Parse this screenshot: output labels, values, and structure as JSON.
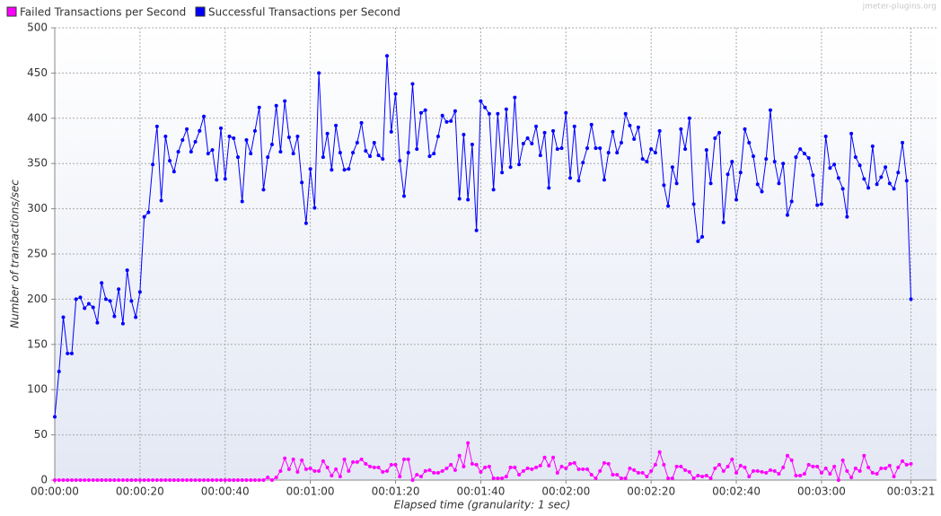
{
  "chart_data": {
    "type": "line",
    "legend_position": "top-left",
    "watermark": "jmeter-plugins.org",
    "x_label": "Elapsed time (granularity: 1 sec)",
    "y_label": "Number of transactions/sec",
    "grid": true,
    "x": [
      0,
      1,
      2,
      3,
      4,
      5,
      6,
      7,
      8,
      9,
      10,
      11,
      12,
      13,
      14,
      15,
      16,
      17,
      18,
      19,
      20,
      21,
      22,
      23,
      24,
      25,
      26,
      27,
      28,
      29,
      30,
      31,
      32,
      33,
      34,
      35,
      36,
      37,
      38,
      39,
      40,
      41,
      42,
      43,
      44,
      45,
      46,
      47,
      48,
      49,
      50,
      51,
      52,
      53,
      54,
      55,
      56,
      57,
      58,
      59,
      60,
      61,
      62,
      63,
      64,
      65,
      66,
      67,
      68,
      69,
      70,
      71,
      72,
      73,
      74,
      75,
      76,
      77,
      78,
      79,
      80,
      81,
      82,
      83,
      84,
      85,
      86,
      87,
      88,
      89,
      90,
      91,
      92,
      93,
      94,
      95,
      96,
      97,
      98,
      99,
      100,
      101,
      102,
      103,
      104,
      105,
      106,
      107,
      108,
      109,
      110,
      111,
      112,
      113,
      114,
      115,
      116,
      117,
      118,
      119,
      120,
      121,
      122,
      123,
      124,
      125,
      126,
      127,
      128,
      129,
      130,
      131,
      132,
      133,
      134,
      135,
      136,
      137,
      138,
      139,
      140,
      141,
      142,
      143,
      144,
      145,
      146,
      147,
      148,
      149,
      150,
      151,
      152,
      153,
      154,
      155,
      156,
      157,
      158,
      159,
      160,
      161,
      162,
      163,
      164,
      165,
      166,
      167,
      168,
      169,
      170,
      171,
      172,
      173,
      174,
      175,
      176,
      177,
      178,
      179,
      180,
      181,
      182,
      183,
      184,
      185,
      186,
      187,
      188,
      189,
      190,
      191,
      192,
      193,
      194,
      195,
      196,
      197,
      198,
      199,
      200,
      201
    ],
    "series": [
      {
        "name": "Failed Transactions per Second",
        "color": "#ff00ff",
        "values": [
          0,
          0,
          0,
          0,
          0,
          0,
          0,
          0,
          0,
          0,
          0,
          0,
          0,
          0,
          0,
          0,
          0,
          0,
          0,
          0,
          0,
          0,
          0,
          0,
          0,
          0,
          0,
          0,
          0,
          0,
          0,
          0,
          0,
          0,
          0,
          0,
          0,
          0,
          0,
          0,
          0,
          0,
          0,
          0,
          0,
          0,
          0,
          0,
          0,
          0,
          3,
          0,
          3,
          10,
          24,
          12,
          23,
          9,
          22,
          12,
          13,
          10,
          10,
          21,
          14,
          5,
          12,
          4,
          23,
          10,
          20,
          20,
          23,
          18,
          15,
          14,
          14,
          9,
          10,
          17,
          17,
          4,
          23,
          23,
          0,
          6,
          4,
          10,
          11,
          8,
          8,
          10,
          13,
          17,
          11,
          27,
          15,
          41,
          18,
          17,
          9,
          14,
          15,
          2,
          2,
          2,
          4,
          14,
          14,
          6,
          10,
          13,
          12,
          14,
          16,
          25,
          16,
          25,
          8,
          15,
          13,
          18,
          19,
          12,
          12,
          12,
          6,
          2,
          10,
          19,
          18,
          6,
          6,
          2,
          2,
          13,
          11,
          8,
          8,
          4,
          10,
          17,
          31,
          17,
          2,
          2,
          15,
          15,
          11,
          9,
          2,
          5,
          4,
          5,
          2,
          13,
          17,
          10,
          15,
          23,
          8,
          16,
          14,
          4,
          10,
          10,
          9,
          8,
          11,
          10,
          7,
          14,
          27,
          22,
          5,
          5,
          7,
          17,
          15,
          15,
          8,
          13,
          7,
          15,
          0,
          22,
          10,
          3,
          13,
          10,
          27,
          14,
          8,
          7,
          13,
          13,
          16,
          4,
          14,
          21,
          17,
          18
        ]
      },
      {
        "name": "Successful Transactions per Second",
        "color": "#0000ff",
        "values": [
          70,
          120,
          180,
          140,
          140,
          200,
          202,
          190,
          195,
          191,
          174,
          218,
          200,
          198,
          181,
          211,
          173,
          232,
          198,
          180,
          208,
          291,
          296,
          349,
          391,
          309,
          380,
          353,
          341,
          363,
          376,
          388,
          363,
          374,
          386,
          402,
          361,
          365,
          332,
          389,
          333,
          380,
          378,
          357,
          308,
          376,
          361,
          386,
          412,
          321,
          357,
          371,
          414,
          363,
          419,
          379,
          361,
          380,
          329,
          284,
          344,
          301,
          450,
          357,
          383,
          343,
          392,
          362,
          343,
          344,
          362,
          373,
          395,
          364,
          358,
          373,
          359,
          355,
          469,
          385,
          427,
          353,
          314,
          362,
          438,
          366,
          406,
          409,
          358,
          361,
          380,
          403,
          396,
          397,
          408,
          311,
          382,
          310,
          371,
          276,
          419,
          412,
          405,
          321,
          405,
          340,
          410,
          346,
          423,
          349,
          372,
          378,
          372,
          391,
          359,
          384,
          323,
          386,
          366,
          367,
          406,
          334,
          391,
          331,
          351,
          367,
          393,
          367,
          367,
          332,
          362,
          385,
          362,
          373,
          405,
          392,
          377,
          390,
          355,
          352,
          366,
          362,
          386,
          326,
          303,
          346,
          328,
          388,
          366,
          400,
          305,
          264,
          269,
          365,
          328,
          378,
          384,
          285,
          338,
          352,
          310,
          340,
          388,
          373,
          358,
          327,
          319,
          355,
          409,
          352,
          328,
          350,
          293,
          308,
          357,
          366,
          361,
          356,
          337,
          304,
          305,
          380,
          345,
          349,
          334,
          322,
          291,
          383,
          357,
          348,
          333,
          323,
          369,
          327,
          335,
          346,
          328,
          322,
          340,
          373,
          331,
          200
        ]
      }
    ],
    "xlim": [
      0,
      207
    ],
    "xticks": [
      {
        "value": 0,
        "label": "00:00:00"
      },
      {
        "value": 20,
        "label": "00:00:20"
      },
      {
        "value": 40,
        "label": "00:00:40"
      },
      {
        "value": 60,
        "label": "00:01:00"
      },
      {
        "value": 80,
        "label": "00:01:20"
      },
      {
        "value": 100,
        "label": "00:01:40"
      },
      {
        "value": 120,
        "label": "00:02:00"
      },
      {
        "value": 140,
        "label": "00:02:20"
      },
      {
        "value": 160,
        "label": "00:02:40"
      },
      {
        "value": 180,
        "label": "00:03:00"
      },
      {
        "value": 201,
        "label": "00:03:21"
      }
    ],
    "ylim": [
      0,
      500
    ],
    "yticks": [
      0,
      50,
      100,
      150,
      200,
      250,
      300,
      350,
      400,
      450,
      500
    ]
  }
}
